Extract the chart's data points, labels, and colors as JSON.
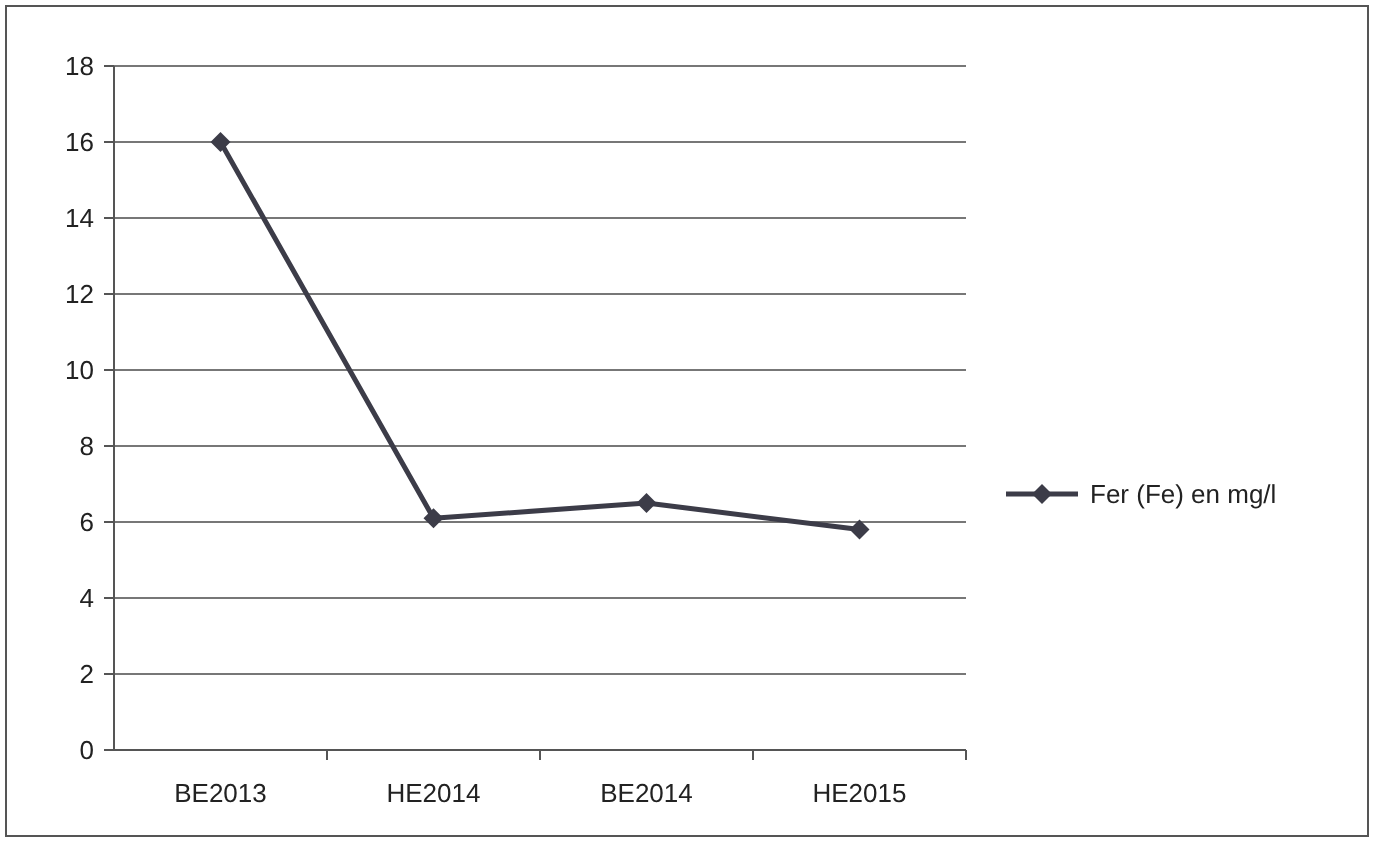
{
  "chart_data": {
    "type": "line",
    "categories": [
      "BE2013",
      "HE2014",
      "BE2014",
      "HE2015"
    ],
    "series": [
      {
        "name": "Fer (Fe) en mg/l",
        "color": "#3c3c48",
        "values": [
          16,
          6.1,
          6.5,
          5.8
        ]
      }
    ],
    "ylim": [
      0,
      18
    ],
    "yticks": [
      0,
      2,
      4,
      6,
      8,
      10,
      12,
      14,
      16,
      18
    ],
    "grid": "y",
    "legend": "right",
    "marker": "diamond",
    "line_style": "solid"
  }
}
